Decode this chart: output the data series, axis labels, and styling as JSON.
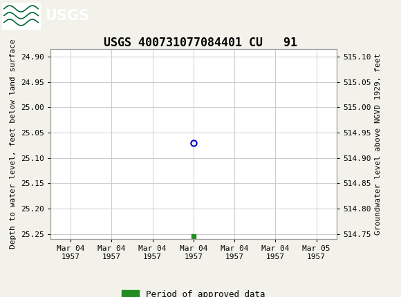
{
  "title": "USGS 400731077084401 CU   91",
  "ylabel_left": "Depth to water level, feet below land surface",
  "ylabel_right": "Groundwater level above NGVD 1929, feet",
  "xlabel_dates": [
    "Mar 04\n1957",
    "Mar 04\n1957",
    "Mar 04\n1957",
    "Mar 04\n1957",
    "Mar 04\n1957",
    "Mar 04\n1957",
    "Mar 05\n1957"
  ],
  "ylim_left": [
    25.26,
    24.885
  ],
  "ylim_right": [
    514.74,
    515.115
  ],
  "yticks_left": [
    24.9,
    24.95,
    25.0,
    25.05,
    25.1,
    25.15,
    25.2,
    25.25
  ],
  "yticks_right": [
    515.1,
    515.05,
    515.0,
    514.95,
    514.9,
    514.85,
    514.8,
    514.75
  ],
  "data_point_x": 3.0,
  "data_point_y": 25.07,
  "data_point_color": "#0000cd",
  "data_point_marker": "o",
  "data_point_markersize": 6,
  "green_square_x": 3.0,
  "green_square_y": 25.255,
  "green_square_color": "#228B22",
  "header_color": "#006633",
  "header_border_color": "#004400",
  "background_color": "#f2f2ea",
  "plot_bg_color": "#ffffff",
  "grid_color": "#cccccc",
  "legend_label": "Period of approved data",
  "legend_color": "#228B22",
  "font_family": "monospace",
  "xtick_positions": [
    0,
    1,
    2,
    3,
    4,
    5,
    6
  ]
}
